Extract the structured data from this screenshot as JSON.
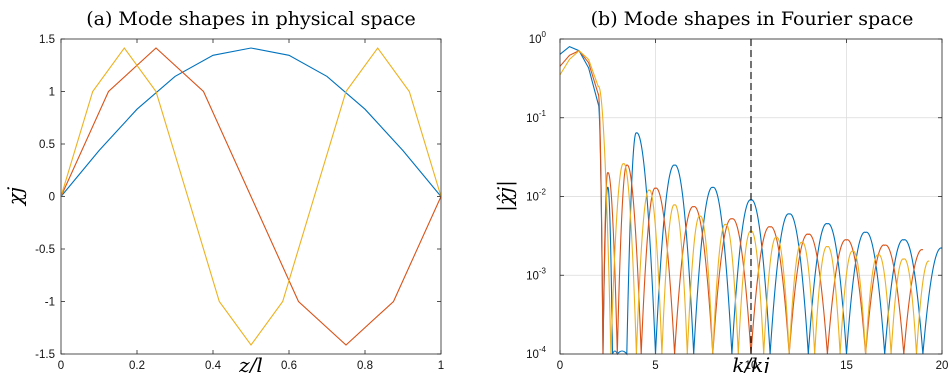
{
  "chart_data": [
    {
      "type": "line",
      "title": "(a) Mode shapes in physical space",
      "xlabel": "z/l",
      "ylabel": "χj",
      "xlim": [
        0,
        1
      ],
      "ylim": [
        -1.5,
        1.5
      ],
      "x_ticks": [
        "0",
        "0.2",
        "0.4",
        "0.6",
        "0.8",
        "1"
      ],
      "y_ticks": [
        "-1.5",
        "-1",
        "-0.5",
        "0",
        "0.5",
        "1",
        "1.5"
      ],
      "grid": false,
      "series": [
        {
          "color": "#0072BD",
          "x": [
            0,
            0.1,
            0.2,
            0.3,
            0.4,
            0.5,
            0.6,
            0.7,
            0.8,
            0.9,
            1.0
          ],
          "values": [
            0,
            0.437,
            0.831,
            1.144,
            1.345,
            1.414,
            1.345,
            1.144,
            0.831,
            0.437,
            0
          ]
        },
        {
          "color": "#D95319",
          "x": [
            0,
            0.125,
            0.25,
            0.375,
            0.5,
            0.625,
            0.75,
            0.875,
            1.0
          ],
          "values": [
            0,
            1.0,
            1.414,
            1.0,
            0,
            -1.0,
            -1.414,
            -1.0,
            0
          ]
        },
        {
          "color": "#EDB120",
          "x": [
            0,
            0.0833,
            0.1667,
            0.25,
            0.3333,
            0.4167,
            0.5,
            0.5833,
            0.6667,
            0.75,
            0.8333,
            0.9167,
            1.0
          ],
          "values": [
            0,
            1.0,
            1.414,
            1.0,
            0,
            -1.0,
            -1.414,
            -1.0,
            0,
            1.0,
            1.414,
            1.0,
            0
          ]
        }
      ]
    },
    {
      "type": "line",
      "title": "(b) Mode shapes in Fourier space",
      "xlabel": "k/kj",
      "ylabel": "|χ̂j|",
      "xlim": [
        0,
        20
      ],
      "ylim": [
        0.0001,
        1
      ],
      "yscale": "log",
      "x_ticks": [
        "0",
        "5",
        "10",
        "15",
        "20"
      ],
      "y_ticks": [
        "10",
        "10",
        "10",
        "10",
        "10"
      ],
      "y_tick_exponents": [
        "-4",
        "-3",
        "-2",
        "-1",
        "0"
      ],
      "grid": true,
      "annotations": [
        {
          "type": "vertical-dashed-line",
          "x": 10
        }
      ],
      "series": [
        {
          "color": "#0072BD",
          "x": [
            0,
            0.5,
            1,
            1.5,
            2,
            2.5,
            3,
            4,
            6,
            8,
            10,
            12,
            14,
            16,
            18,
            20
          ],
          "values": [
            0.64,
            0.8,
            0.71,
            0.43,
            0.15,
            0.013,
            0.0001,
            0.064,
            0.025,
            0.013,
            0.009,
            0.006,
            0.0045,
            0.0035,
            0.0028,
            0.0022
          ]
        },
        {
          "color": "#D95319",
          "x": [
            0,
            0.5,
            1,
            1.5,
            2,
            2.5,
            3.5,
            5,
            7,
            9,
            11,
            13,
            15,
            17,
            19
          ],
          "values": [
            0.45,
            0.62,
            0.71,
            0.5,
            0.2,
            0.02,
            0.025,
            0.0127,
            0.0074,
            0.0052,
            0.0041,
            0.0033,
            0.0028,
            0.0024,
            0.0021
          ]
        },
        {
          "color": "#EDB120",
          "x": [
            0,
            0.5,
            1,
            1.5,
            2,
            3.33,
            4.67,
            6,
            7.33,
            8.67,
            10,
            11.33,
            12.67,
            14,
            15.33,
            16.67,
            18,
            19.33
          ],
          "values": [
            0.35,
            0.55,
            0.71,
            0.55,
            0.25,
            0.026,
            0.012,
            0.0078,
            0.0056,
            0.0044,
            0.0036,
            0.003,
            0.0026,
            0.0023,
            0.002,
            0.0018,
            0.0016,
            0.0015
          ]
        }
      ]
    }
  ]
}
